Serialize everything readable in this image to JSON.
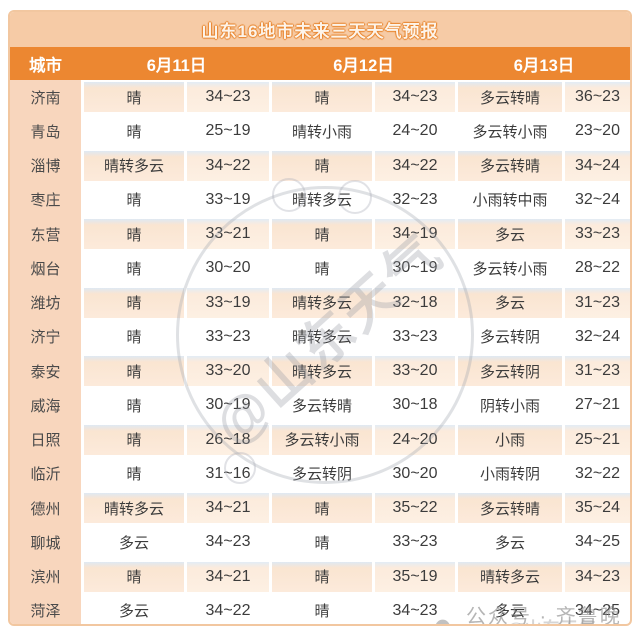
{
  "title": "山东16地市未来三天天气预报",
  "header": {
    "city": "城市",
    "dates": [
      "6月11日",
      "6月12日",
      "6月13日"
    ]
  },
  "colors": {
    "title_bar_bg": "#f6cba6",
    "header_row_bg": "#ec8731",
    "header_text": "#ffffff",
    "city_column_bg": "#f8d6bd",
    "tinted_cell_bg": "#fbe7d5",
    "tinted_cell_top_edge": "#dfe9f3",
    "body_text": "#3c3c3c",
    "frame_border": "#f2c7a0"
  },
  "watermarks": {
    "center": "@山东天气",
    "footer": "公众号 · 齐鲁晚报",
    "corner": "@山东天气"
  },
  "chart_data": {
    "type": "table",
    "title": "山东16地市未来三天天气预报",
    "columns": [
      "城市",
      "6月11日 天气",
      "6月11日 气温",
      "6月12日 天气",
      "6月12日 气温",
      "6月13日 天气",
      "6月13日 气温"
    ],
    "rows": [
      {
        "city": "济南",
        "days": [
          {
            "weather": "晴",
            "temp": "34~23"
          },
          {
            "weather": "晴",
            "temp": "34~23"
          },
          {
            "weather": "多云转晴",
            "temp": "36~23"
          }
        ]
      },
      {
        "city": "青岛",
        "days": [
          {
            "weather": "晴",
            "temp": "25~19"
          },
          {
            "weather": "晴转小雨",
            "temp": "24~20"
          },
          {
            "weather": "多云转小雨",
            "temp": "23~20"
          }
        ]
      },
      {
        "city": "淄博",
        "days": [
          {
            "weather": "晴转多云",
            "temp": "34~22"
          },
          {
            "weather": "晴",
            "temp": "34~22"
          },
          {
            "weather": "多云转晴",
            "temp": "34~24"
          }
        ]
      },
      {
        "city": "枣庄",
        "days": [
          {
            "weather": "晴",
            "temp": "33~19"
          },
          {
            "weather": "晴转多云",
            "temp": "32~23"
          },
          {
            "weather": "小雨转中雨",
            "temp": "32~24"
          }
        ]
      },
      {
        "city": "东营",
        "days": [
          {
            "weather": "晴",
            "temp": "33~21"
          },
          {
            "weather": "晴",
            "temp": "34~19"
          },
          {
            "weather": "多云",
            "temp": "33~23"
          }
        ]
      },
      {
        "city": "烟台",
        "days": [
          {
            "weather": "晴",
            "temp": "30~20"
          },
          {
            "weather": "晴",
            "temp": "30~19"
          },
          {
            "weather": "多云转小雨",
            "temp": "28~22"
          }
        ]
      },
      {
        "city": "潍坊",
        "days": [
          {
            "weather": "晴",
            "temp": "33~19"
          },
          {
            "weather": "晴转多云",
            "temp": "32~18"
          },
          {
            "weather": "多云",
            "temp": "31~23"
          }
        ]
      },
      {
        "city": "济宁",
        "days": [
          {
            "weather": "晴",
            "temp": "33~23"
          },
          {
            "weather": "晴转多云",
            "temp": "33~23"
          },
          {
            "weather": "多云转阴",
            "temp": "32~24"
          }
        ]
      },
      {
        "city": "泰安",
        "days": [
          {
            "weather": "晴",
            "temp": "33~20"
          },
          {
            "weather": "晴转多云",
            "temp": "33~20"
          },
          {
            "weather": "多云转阴",
            "temp": "31~23"
          }
        ]
      },
      {
        "city": "威海",
        "days": [
          {
            "weather": "晴",
            "temp": "30~19"
          },
          {
            "weather": "多云转晴",
            "temp": "30~18"
          },
          {
            "weather": "阴转小雨",
            "temp": "27~21"
          }
        ]
      },
      {
        "city": "日照",
        "days": [
          {
            "weather": "晴",
            "temp": "26~18"
          },
          {
            "weather": "多云转小雨",
            "temp": "24~20"
          },
          {
            "weather": "小雨",
            "temp": "25~21"
          }
        ]
      },
      {
        "city": "临沂",
        "days": [
          {
            "weather": "晴",
            "temp": "31~16"
          },
          {
            "weather": "多云转阴",
            "temp": "30~20"
          },
          {
            "weather": "小雨转阴",
            "temp": "32~22"
          }
        ]
      },
      {
        "city": "德州",
        "days": [
          {
            "weather": "晴转多云",
            "temp": "34~21"
          },
          {
            "weather": "晴",
            "temp": "35~22"
          },
          {
            "weather": "多云转晴",
            "temp": "35~24"
          }
        ]
      },
      {
        "city": "聊城",
        "days": [
          {
            "weather": "多云",
            "temp": "34~23"
          },
          {
            "weather": "晴",
            "temp": "33~23"
          },
          {
            "weather": "多云",
            "temp": "34~25"
          }
        ]
      },
      {
        "city": "滨州",
        "days": [
          {
            "weather": "晴",
            "temp": "34~21"
          },
          {
            "weather": "晴",
            "temp": "35~19"
          },
          {
            "weather": "晴转多云",
            "temp": "34~23"
          }
        ]
      },
      {
        "city": "菏泽",
        "days": [
          {
            "weather": "多云",
            "temp": "34~22"
          },
          {
            "weather": "晴",
            "temp": "34~23"
          },
          {
            "weather": "多云",
            "temp": "34~25"
          }
        ]
      }
    ]
  }
}
